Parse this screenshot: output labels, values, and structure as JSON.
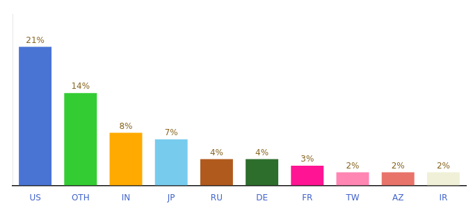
{
  "chart_data": {
    "type": "bar",
    "categories": [
      "US",
      "OTH",
      "IN",
      "JP",
      "RU",
      "DE",
      "FR",
      "TW",
      "AZ",
      "IR"
    ],
    "values": [
      21,
      14,
      8,
      7,
      4,
      4,
      3,
      2,
      2,
      2
    ],
    "value_labels": [
      "21%",
      "14%",
      "8%",
      "7%",
      "4%",
      "4%",
      "3%",
      "2%",
      "2%",
      "2%"
    ],
    "data_labels": true,
    "colors": [
      "#4a74d4",
      "#33cc33",
      "#ffaa00",
      "#77ccee",
      "#b05a1e",
      "#2d6e2d",
      "#ff1493",
      "#ff85b3",
      "#e8736b",
      "#f0f0d8"
    ],
    "ylim": [
      0,
      26
    ],
    "tick_labels": "x",
    "grid": false
  }
}
